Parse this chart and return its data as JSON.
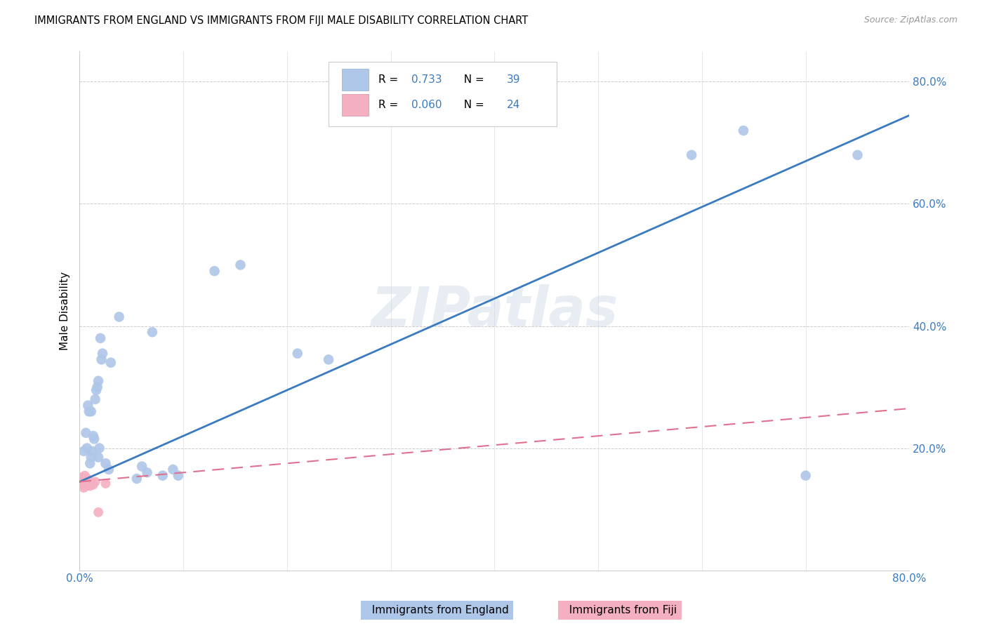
{
  "title": "IMMIGRANTS FROM ENGLAND VS IMMIGRANTS FROM FIJI MALE DISABILITY CORRELATION CHART",
  "source": "Source: ZipAtlas.com",
  "ylabel": "Male Disability",
  "xlim": [
    0.0,
    0.8
  ],
  "ylim": [
    0.0,
    0.85
  ],
  "england_R": 0.733,
  "england_N": 39,
  "fiji_R": 0.06,
  "fiji_N": 24,
  "england_color": "#aec6e8",
  "england_line_color": "#3a7abf",
  "fiji_color": "#f4afc0",
  "fiji_line_color": "#e07090",
  "watermark": "ZIPatlas",
  "england_x": [
    0.004,
    0.006,
    0.007,
    0.008,
    0.009,
    0.01,
    0.011,
    0.011,
    0.012,
    0.013,
    0.014,
    0.015,
    0.016,
    0.017,
    0.018,
    0.018,
    0.019,
    0.02,
    0.021,
    0.022,
    0.025,
    0.028,
    0.03,
    0.038,
    0.055,
    0.06,
    0.065,
    0.07,
    0.08,
    0.09,
    0.095,
    0.13,
    0.155,
    0.21,
    0.24,
    0.59,
    0.64,
    0.7,
    0.75
  ],
  "england_y": [
    0.195,
    0.225,
    0.2,
    0.27,
    0.26,
    0.175,
    0.185,
    0.26,
    0.195,
    0.22,
    0.215,
    0.28,
    0.295,
    0.3,
    0.31,
    0.185,
    0.2,
    0.38,
    0.345,
    0.355,
    0.175,
    0.165,
    0.34,
    0.415,
    0.15,
    0.17,
    0.16,
    0.39,
    0.155,
    0.165,
    0.155,
    0.49,
    0.5,
    0.355,
    0.345,
    0.68,
    0.72,
    0.155,
    0.68
  ],
  "fiji_x": [
    0.001,
    0.002,
    0.002,
    0.003,
    0.003,
    0.004,
    0.004,
    0.005,
    0.005,
    0.006,
    0.006,
    0.007,
    0.007,
    0.008,
    0.008,
    0.009,
    0.01,
    0.01,
    0.011,
    0.012,
    0.013,
    0.015,
    0.018,
    0.025
  ],
  "fiji_y": [
    0.15,
    0.145,
    0.152,
    0.14,
    0.148,
    0.135,
    0.142,
    0.155,
    0.145,
    0.148,
    0.138,
    0.142,
    0.15,
    0.14,
    0.148,
    0.143,
    0.145,
    0.138,
    0.142,
    0.143,
    0.14,
    0.145,
    0.095,
    0.142
  ],
  "eng_line_x0": 0.0,
  "eng_line_y0": 0.145,
  "eng_line_x1": 0.8,
  "eng_line_y1": 0.745,
  "fiji_line_x0": 0.0,
  "fiji_line_y0": 0.145,
  "fiji_line_x1": 0.8,
  "fiji_line_y1": 0.265
}
